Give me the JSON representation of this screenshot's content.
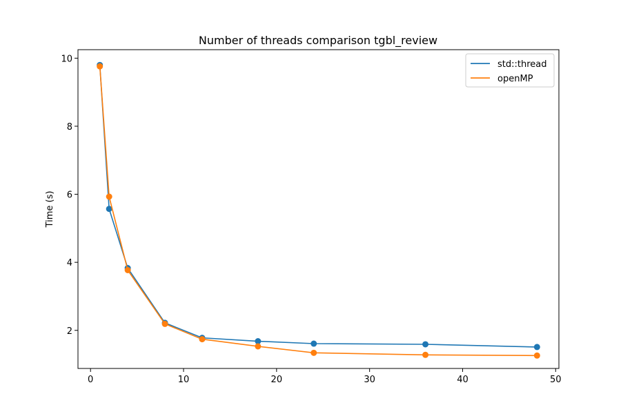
{
  "chart_data": {
    "type": "line",
    "title": "Number of threads comparison tgbl_review",
    "xlabel": "",
    "ylabel": "Time (s)",
    "xlim": [
      -1.35,
      50.35
    ],
    "ylim": [
      0.88,
      10.25
    ],
    "xticks": [
      0,
      10,
      20,
      30,
      40,
      50
    ],
    "yticks": [
      2,
      4,
      6,
      8,
      10
    ],
    "grid": false,
    "legend_position": "top-right",
    "markers": true,
    "x": [
      1,
      2,
      4,
      8,
      12,
      18,
      24,
      36,
      48
    ],
    "series": [
      {
        "name": "std::thread",
        "color": "#1f77b4",
        "values": [
          9.8,
          5.57,
          3.83,
          2.22,
          1.78,
          1.68,
          1.61,
          1.59,
          1.51
        ]
      },
      {
        "name": "openMP",
        "color": "#ff7f0e",
        "values": [
          9.76,
          5.93,
          3.77,
          2.19,
          1.74,
          1.53,
          1.34,
          1.28,
          1.26
        ]
      }
    ]
  }
}
